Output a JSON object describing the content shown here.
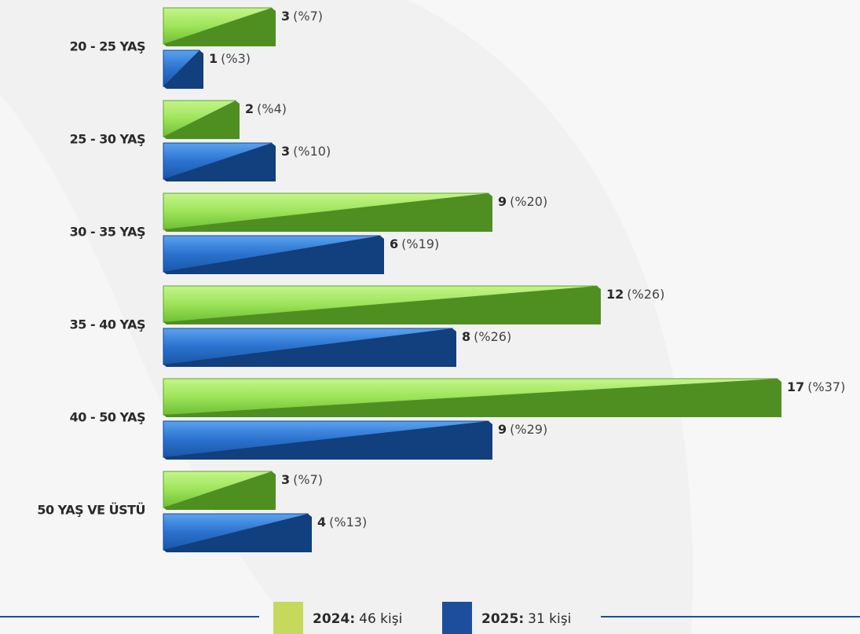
{
  "chart_data": {
    "type": "bar",
    "orientation": "horizontal",
    "categories": [
      "20 - 25 YAŞ",
      "25 - 30 YAŞ",
      "30 - 35 YAŞ",
      "35 - 40 YAŞ",
      "40 - 50 YAŞ",
      "50 YAŞ VE ÜSTÜ"
    ],
    "series": [
      {
        "name": "2024:",
        "total_label": "46 kişi",
        "color": "#8fd94f",
        "legend_color": "#c6d95c",
        "values": [
          3,
          2,
          9,
          12,
          17,
          3
        ],
        "percent_labels": [
          "(%7)",
          "(%4)",
          "(%20)",
          "(%26)",
          "(%37)",
          "(%7)"
        ]
      },
      {
        "name": "2025:",
        "total_label": "31 kişi",
        "color": "#2b73cf",
        "legend_color": "#1b4f9d",
        "values": [
          1,
          3,
          6,
          8,
          9,
          4
        ],
        "percent_labels": [
          "(%3)",
          "(%10)",
          "(%19)",
          "(%26)",
          "(%29)",
          "(%13)"
        ]
      }
    ]
  }
}
